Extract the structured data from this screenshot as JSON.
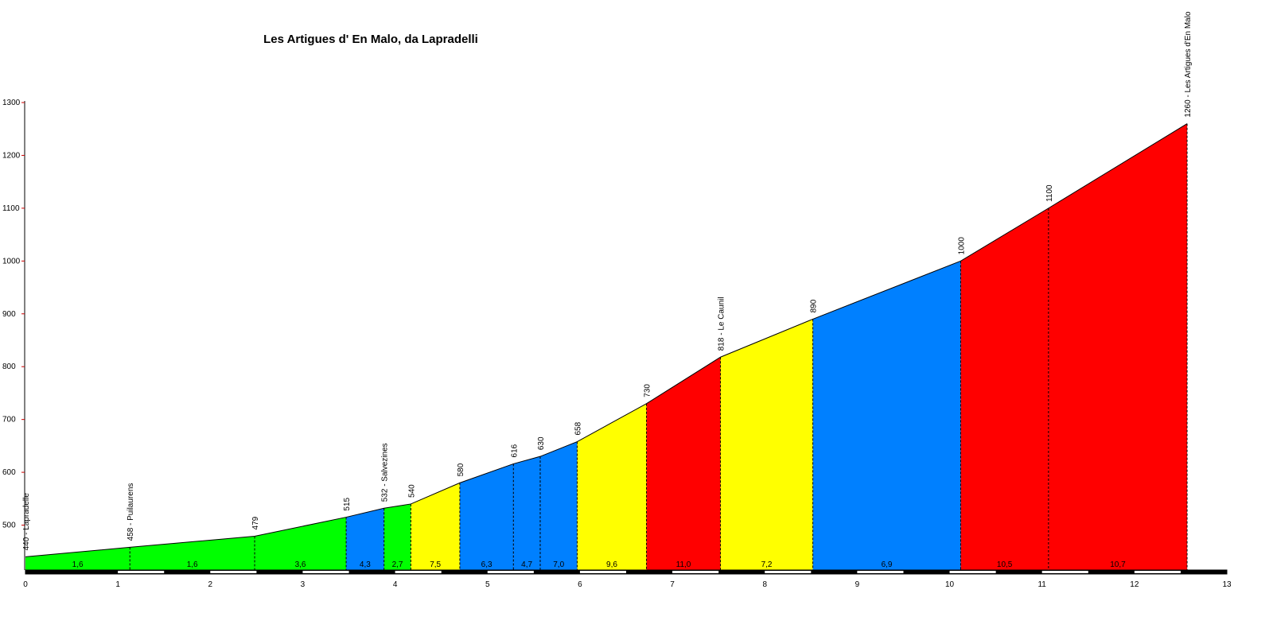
{
  "chart_data": {
    "type": "area",
    "title": "Les Artigues d' En Malo, da Lapradelli",
    "xlim": [
      0,
      13
    ],
    "ylim": [
      415,
      1300
    ],
    "x_ticks": [
      0,
      1,
      2,
      3,
      4,
      5,
      6,
      7,
      8,
      9,
      10,
      11,
      12,
      13
    ],
    "y_ticks": [
      500,
      600,
      700,
      800,
      900,
      1000,
      1100,
      1200,
      1300
    ],
    "profile": [
      {
        "x": 0.0,
        "y": 440,
        "label": "440 - Lapradelle"
      },
      {
        "x": 1.13,
        "y": 458,
        "label": "458 - Puilaurens"
      },
      {
        "x": 2.48,
        "y": 479,
        "label": "479"
      },
      {
        "x": 3.47,
        "y": 515,
        "label": "515"
      },
      {
        "x": 3.88,
        "y": 532,
        "label": "532 - Salvezines"
      },
      {
        "x": 4.17,
        "y": 540,
        "label": "540"
      },
      {
        "x": 4.7,
        "y": 580,
        "label": "580"
      },
      {
        "x": 5.28,
        "y": 616,
        "label": "616"
      },
      {
        "x": 5.57,
        "y": 630,
        "label": "630"
      },
      {
        "x": 5.97,
        "y": 658,
        "label": "658"
      },
      {
        "x": 6.72,
        "y": 730,
        "label": "730"
      },
      {
        "x": 7.52,
        "y": 818,
        "label": "818 - Le Caunil"
      },
      {
        "x": 8.52,
        "y": 890,
        "label": "890"
      },
      {
        "x": 10.12,
        "y": 1000,
        "label": "1000"
      },
      {
        "x": 11.07,
        "y": 1100,
        "label": "1100"
      },
      {
        "x": 12.57,
        "y": 1260,
        "label": "1260 - Les Artigues d'En Malo"
      }
    ],
    "segments": [
      {
        "from": 0.0,
        "to": 1.13,
        "gradient": "1,6",
        "color": "#00ff00"
      },
      {
        "from": 1.13,
        "to": 2.48,
        "gradient": "1,6",
        "color": "#00ff00"
      },
      {
        "from": 2.48,
        "to": 3.47,
        "gradient": "3,6",
        "color": "#00ff00"
      },
      {
        "from": 3.47,
        "to": 3.88,
        "gradient": "4,3",
        "color": "#0080ff"
      },
      {
        "from": 3.88,
        "to": 4.17,
        "gradient": "2,7",
        "color": "#00ff00"
      },
      {
        "from": 4.17,
        "to": 4.7,
        "gradient": "7,5",
        "color": "#ffff00"
      },
      {
        "from": 4.7,
        "to": 5.28,
        "gradient": "6,3",
        "color": "#0080ff"
      },
      {
        "from": 5.28,
        "to": 5.57,
        "gradient": "4,7",
        "color": "#0080ff"
      },
      {
        "from": 5.57,
        "to": 5.97,
        "gradient": "7,0",
        "color": "#0080ff"
      },
      {
        "from": 5.97,
        "to": 6.72,
        "gradient": "9,6",
        "color": "#ffff00"
      },
      {
        "from": 6.72,
        "to": 7.52,
        "gradient": "11,0",
        "color": "#ff0000"
      },
      {
        "from": 7.52,
        "to": 8.52,
        "gradient": "7,2",
        "color": "#ffff00"
      },
      {
        "from": 8.52,
        "to": 10.12,
        "gradient": "6,9",
        "color": "#0080ff"
      },
      {
        "from": 10.12,
        "to": 11.07,
        "gradient": "10,5",
        "color": "#ff0000"
      },
      {
        "from": 11.07,
        "to": 12.57,
        "gradient": "10,7",
        "color": "#ff0000"
      }
    ],
    "grid": false
  }
}
